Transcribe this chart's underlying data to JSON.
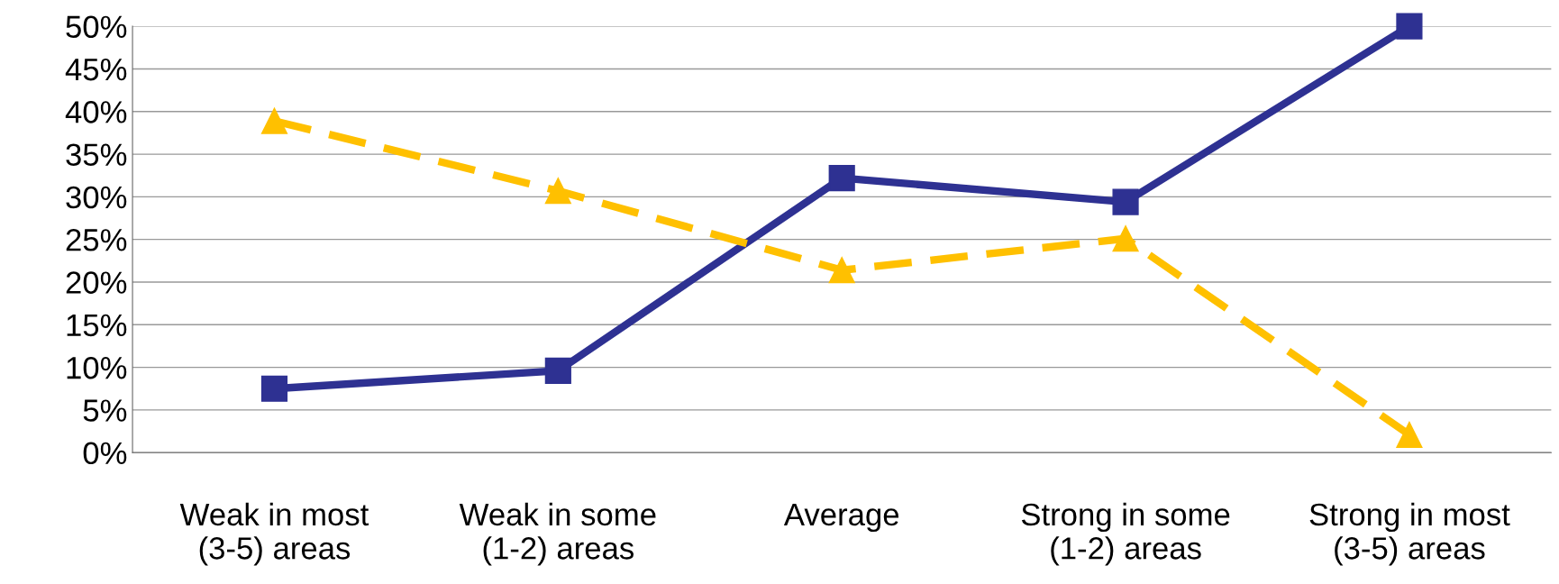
{
  "chart_data": {
    "type": "line",
    "categories": [
      "Weak in most\n(3-5) areas",
      "Weak in some\n(1-2) areas",
      "Average",
      "Strong in some\n(1-2) areas",
      "Strong in most\n(3-5) areas"
    ],
    "series": [
      {
        "color": "#2e3192",
        "marker": "square",
        "line_style": "solid",
        "values": [
          7.5,
          9.6,
          32.2,
          29.4,
          50
        ]
      },
      {
        "color": "#ffc000",
        "marker": "triangle",
        "line_style": "dashed",
        "values": [
          38.9,
          30.7,
          21.4,
          25.1,
          2.1
        ]
      }
    ],
    "ylim": [
      0,
      50
    ],
    "yticks": [
      {
        "value": 0,
        "label": "0%"
      },
      {
        "value": 5,
        "label": "5%"
      },
      {
        "value": 10,
        "label": "10%"
      },
      {
        "value": 15,
        "label": "15%"
      },
      {
        "value": 20,
        "label": "20%"
      },
      {
        "value": 25,
        "label": "25%"
      },
      {
        "value": 30,
        "label": "30%"
      },
      {
        "value": 35,
        "label": "35%"
      },
      {
        "value": 40,
        "label": "40%"
      },
      {
        "value": 45,
        "label": "45%"
      },
      {
        "value": 50,
        "label": "50%"
      }
    ],
    "grid": "y",
    "legend": false
  }
}
